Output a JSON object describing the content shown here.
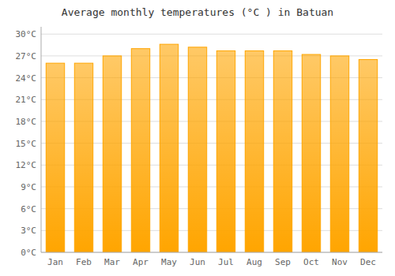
{
  "chart_data": {
    "type": "bar",
    "title": "Average monthly temperatures (°C ) in Batuan",
    "categories": [
      "Jan",
      "Feb",
      "Mar",
      "Apr",
      "May",
      "Jun",
      "Jul",
      "Aug",
      "Sep",
      "Oct",
      "Nov",
      "Dec"
    ],
    "values": [
      26.0,
      26.0,
      27.0,
      28.0,
      28.6,
      28.2,
      27.7,
      27.7,
      27.7,
      27.2,
      27.0,
      26.5
    ],
    "color": "#FFA500",
    "ylim": [
      0,
      31
    ],
    "yticks": [
      {
        "value": 0,
        "label": "0°C"
      },
      {
        "value": 3,
        "label": "3°C"
      },
      {
        "value": 6,
        "label": "6°C"
      },
      {
        "value": 9,
        "label": "9°C"
      },
      {
        "value": 12,
        "label": "12°C"
      },
      {
        "value": 15,
        "label": "15°C"
      },
      {
        "value": 18,
        "label": "18°C"
      },
      {
        "value": 21,
        "label": "21°C"
      },
      {
        "value": 24,
        "label": "24°C"
      },
      {
        "value": 27,
        "label": "27°C"
      },
      {
        "value": 30,
        "label": "30°C"
      }
    ],
    "grid": true
  }
}
